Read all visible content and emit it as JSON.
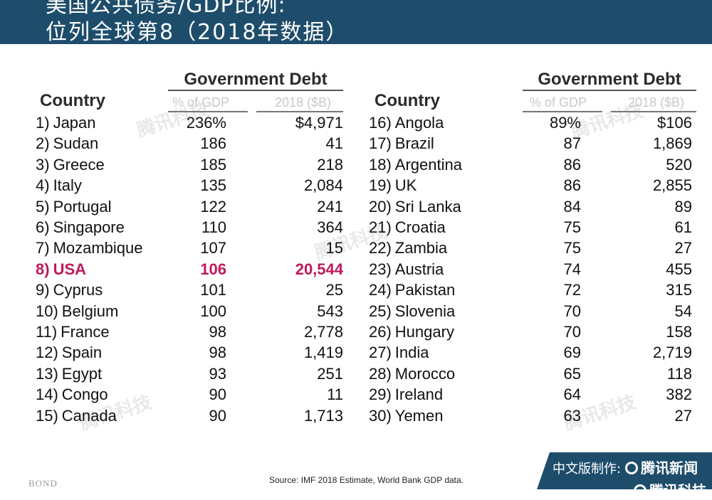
{
  "header": {
    "title_line1": "美国公共债务/GDP比例:",
    "title_line2": "位列全球第8（2018年数据）"
  },
  "table": {
    "group_header": "Government Debt",
    "country_header": "Country",
    "col_pct_header": "% of GDP",
    "col_usd_header": "2018 ($B)",
    "left_rows": [
      {
        "rank": "1)",
        "country": "Japan",
        "pct": "236%",
        "usd": "$4,971"
      },
      {
        "rank": "2)",
        "country": "Sudan",
        "pct": "186",
        "usd": "41"
      },
      {
        "rank": "3)",
        "country": "Greece",
        "pct": "185",
        "usd": "218"
      },
      {
        "rank": "4)",
        "country": "Italy",
        "pct": "135",
        "usd": "2,084"
      },
      {
        "rank": "5)",
        "country": "Portugal",
        "pct": "122",
        "usd": "241"
      },
      {
        "rank": "6)",
        "country": "Singapore",
        "pct": "110",
        "usd": "364"
      },
      {
        "rank": "7)",
        "country": "Mozambique",
        "pct": "107",
        "usd": "15"
      },
      {
        "rank": "8)",
        "country": "USA",
        "pct": "106",
        "usd": "20,544",
        "highlight": true
      },
      {
        "rank": "9)",
        "country": "Cyprus",
        "pct": "101",
        "usd": "25"
      },
      {
        "rank": "10)",
        "country": "Belgium",
        "pct": "100",
        "usd": "543"
      },
      {
        "rank": "11)",
        "country": "France",
        "pct": "98",
        "usd": "2,778"
      },
      {
        "rank": "12)",
        "country": "Spain",
        "pct": "98",
        "usd": "1,419"
      },
      {
        "rank": "13)",
        "country": "Egypt",
        "pct": "93",
        "usd": "251"
      },
      {
        "rank": "14)",
        "country": "Congo",
        "pct": "90",
        "usd": "11"
      },
      {
        "rank": "15)",
        "country": "Canada",
        "pct": "90",
        "usd": "1,713"
      }
    ],
    "right_rows": [
      {
        "rank": "16)",
        "country": "Angola",
        "pct": "89%",
        "usd": "$106"
      },
      {
        "rank": "17)",
        "country": "Brazil",
        "pct": "87",
        "usd": "1,869"
      },
      {
        "rank": "18)",
        "country": "Argentina",
        "pct": "86",
        "usd": "520"
      },
      {
        "rank": "19)",
        "country": "UK",
        "pct": "86",
        "usd": "2,855"
      },
      {
        "rank": "20)",
        "country": "Sri Lanka",
        "pct": "84",
        "usd": "89"
      },
      {
        "rank": "21)",
        "country": "Croatia",
        "pct": "75",
        "usd": "61"
      },
      {
        "rank": "22)",
        "country": "Zambia",
        "pct": "75",
        "usd": "27"
      },
      {
        "rank": "23)",
        "country": "Austria",
        "pct": "74",
        "usd": "455"
      },
      {
        "rank": "24)",
        "country": "Pakistan",
        "pct": "72",
        "usd": "315"
      },
      {
        "rank": "25)",
        "country": "Slovenia",
        "pct": "70",
        "usd": "54"
      },
      {
        "rank": "26)",
        "country": "Hungary",
        "pct": "70",
        "usd": "158"
      },
      {
        "rank": "27)",
        "country": "India",
        "pct": "69",
        "usd": "2,719"
      },
      {
        "rank": "28)",
        "country": "Morocco",
        "pct": "65",
        "usd": "118"
      },
      {
        "rank": "29)",
        "country": "Ireland",
        "pct": "64",
        "usd": "382"
      },
      {
        "rank": "30)",
        "country": "Yemen",
        "pct": "63",
        "usd": "27"
      }
    ]
  },
  "footer": {
    "source": "Source: IMF 2018 Estimate, World Bank GDP data.",
    "bond": "BOND",
    "credit_prefix": "中文版制作:",
    "credit_brand": "腾讯新闻",
    "credit_brand2": "腾讯科技"
  },
  "watermark_text": "腾讯科技",
  "colors": {
    "header_bg": "#1e4d6b",
    "highlight": "#c0185b",
    "subheader_gray": "#c8c8c8"
  }
}
